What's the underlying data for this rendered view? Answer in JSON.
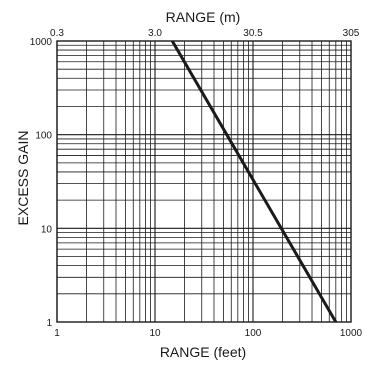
{
  "chart_data": {
    "type": "line",
    "title": "",
    "xlabel": "RANGE (feet)",
    "x2label": "RANGE (m)",
    "ylabel": "EXCESS GAIN",
    "xscale": "log",
    "yscale": "log",
    "xlim": [
      1,
      1000
    ],
    "ylim": [
      1,
      1000
    ],
    "grid": true,
    "x_ticks": [
      "1",
      "10",
      "100",
      "1000"
    ],
    "x2_ticks": [
      "0.3",
      "3.0",
      "30.5",
      "305"
    ],
    "y_ticks": [
      "1",
      "10",
      "100",
      "1000"
    ],
    "series": [
      {
        "x": [
          15,
          700
        ],
        "y": [
          1000,
          1
        ]
      }
    ],
    "colors": {
      "grid": "#1a1a1a",
      "line": "#1a1a1a",
      "background": "#ffffff"
    }
  }
}
